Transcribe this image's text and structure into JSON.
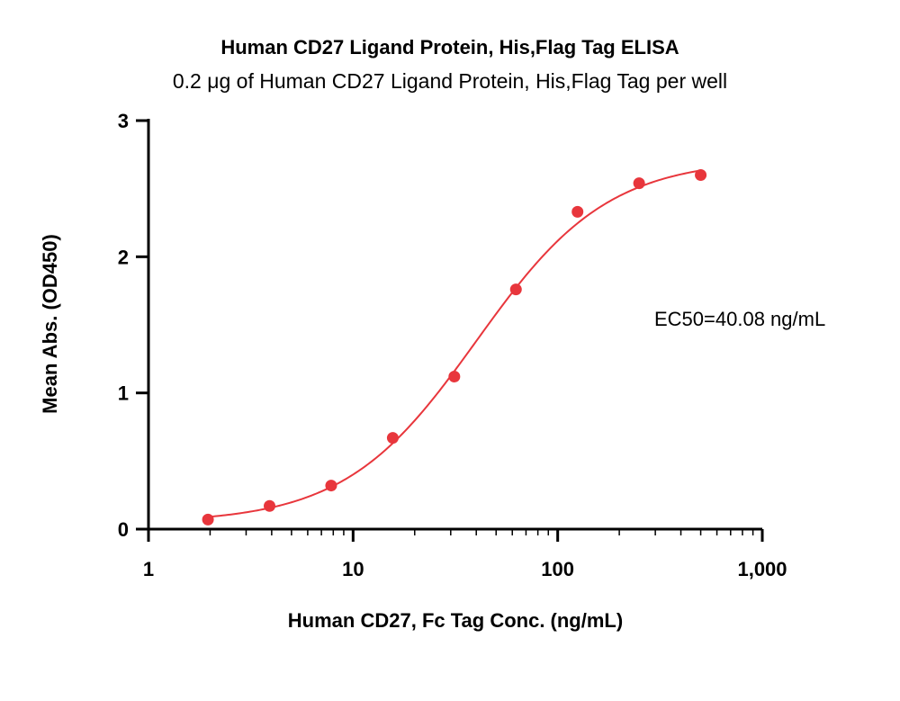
{
  "chart_data": {
    "type": "scatter",
    "title": "Human CD27 Ligand Protein, His,Flag Tag ELISA",
    "subtitle": "0.2 μg of Human CD27 Ligand Protein, His,Flag Tag per well",
    "xlabel": "Human CD27, Fc Tag Conc. (ng/mL)",
    "ylabel": "Mean Abs. (OD450)",
    "x_scale": "log",
    "xlim": [
      1,
      1000
    ],
    "ylim": [
      0,
      3
    ],
    "x_ticks": [
      1,
      10,
      100,
      1000
    ],
    "x_tick_labels": [
      "1",
      "10",
      "100",
      "1,000"
    ],
    "y_ticks": [
      0,
      1,
      2,
      3
    ],
    "y_tick_labels": [
      "0",
      "1",
      "2",
      "3"
    ],
    "grid": false,
    "series": [
      {
        "x": [
          1.953,
          3.906,
          7.813,
          15.63,
          31.25,
          62.5,
          125,
          250,
          500
        ],
        "y": [
          0.07,
          0.17,
          0.32,
          0.67,
          1.12,
          1.76,
          2.33,
          2.54,
          2.6
        ],
        "color": "#E8363C",
        "fit": "4PL"
      }
    ],
    "fit_params": {
      "bottom": 0.045,
      "top": 2.72,
      "ec50": 40.08,
      "hill": 1.35
    },
    "annotations": [
      {
        "text": "EC50=40.08 ng/mL"
      }
    ]
  }
}
